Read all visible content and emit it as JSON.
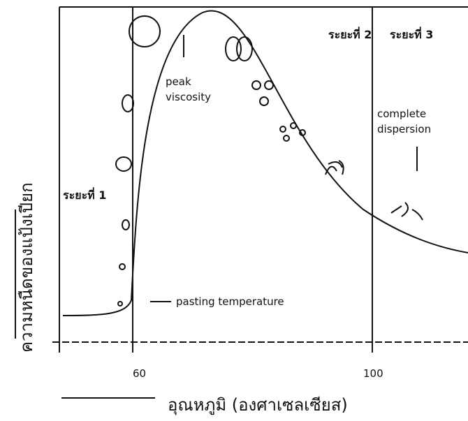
{
  "labels": {
    "stage_1": "ระยะที่ 1",
    "stage_2": "ระยะที่ 2",
    "stage_3": "ระยะที่ 3",
    "peak_viscosity": [
      "peak",
      "viscosity"
    ],
    "complete_dispersion": [
      "complete",
      "dispersion"
    ],
    "pasting_temperature": "pasting temperature"
  },
  "axis": {
    "x_title": "อุณหภูมิ (องศาเซลเซียส)",
    "y_title": "ความหนืดของแป้งเปียก",
    "x_ticks": [
      "60",
      "100"
    ]
  }
}
